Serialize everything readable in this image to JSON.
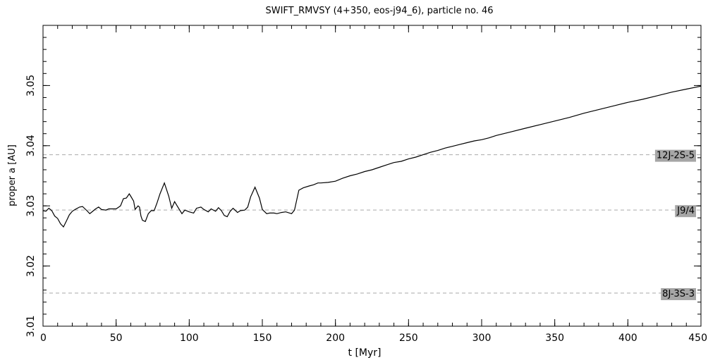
{
  "chart_data": {
    "type": "line",
    "title": "SWIFT_RMVSY (4+350, eos-j94_6), particle no. 46",
    "xlabel": "t [Myr]",
    "ylabel": "proper a [AU]",
    "xlim": [
      0,
      450
    ],
    "ylim": [
      3.01,
      3.06
    ],
    "x_ticks": [
      0,
      50,
      100,
      150,
      200,
      250,
      300,
      350,
      400,
      450
    ],
    "x_tick_labels": [
      "0",
      "50",
      "100",
      "150",
      "200",
      "250",
      "300",
      "350",
      "400",
      "450"
    ],
    "y_ticks": [
      3.01,
      3.02,
      3.03,
      3.04,
      3.05
    ],
    "y_tick_labels": [
      "3.01",
      "3.02",
      "3.03",
      "3.04",
      "3.05"
    ],
    "x_minor_step": 10,
    "y_minor_step": 0.002,
    "grid": false,
    "series": [
      {
        "x": [
          0,
          2,
          4,
          6,
          8,
          10,
          12,
          14,
          16,
          18,
          20,
          22,
          25,
          27,
          30,
          32,
          34,
          36,
          38,
          40,
          43,
          45,
          50,
          53,
          55,
          57,
          59,
          60,
          62,
          63,
          65,
          66,
          67,
          68,
          70,
          72,
          74,
          76,
          78,
          80,
          83,
          86,
          88,
          90,
          92,
          95,
          97,
          100,
          103,
          105,
          108,
          110,
          113,
          115,
          118,
          120,
          122,
          124,
          126,
          128,
          130,
          133,
          135,
          138,
          140,
          142,
          145,
          148,
          150,
          153,
          155,
          158,
          160,
          163,
          166,
          170,
          172,
          175,
          178,
          182,
          185,
          188,
          190,
          195,
          200,
          205,
          210,
          215,
          220,
          225,
          230,
          235,
          240,
          245,
          250,
          255,
          260,
          265,
          270,
          275,
          280,
          285,
          290,
          295,
          300,
          305,
          310,
          320,
          330,
          340,
          350,
          360,
          370,
          380,
          390,
          400,
          410,
          420,
          430,
          440,
          450
        ],
        "values": [
          3.0292,
          3.0291,
          3.0296,
          3.0292,
          3.0283,
          3.0279,
          3.027,
          3.0265,
          3.0275,
          3.0285,
          3.0291,
          3.0294,
          3.0298,
          3.0299,
          3.0292,
          3.0287,
          3.0291,
          3.0295,
          3.0298,
          3.0294,
          3.0293,
          3.0295,
          3.0295,
          3.03,
          3.0312,
          3.0313,
          3.032,
          3.0316,
          3.0308,
          3.0294,
          3.03,
          3.0298,
          3.0283,
          3.0276,
          3.0274,
          3.0287,
          3.0292,
          3.0292,
          3.0305,
          3.032,
          3.0338,
          3.0316,
          3.0296,
          3.0307,
          3.0299,
          3.0287,
          3.0293,
          3.029,
          3.0288,
          3.0296,
          3.0298,
          3.0294,
          3.029,
          3.0295,
          3.0291,
          3.0297,
          3.0292,
          3.0284,
          3.0282,
          3.0291,
          3.0296,
          3.0289,
          3.0292,
          3.0293,
          3.0298,
          3.0315,
          3.0331,
          3.0313,
          3.0294,
          3.0287,
          3.0288,
          3.0288,
          3.0287,
          3.0289,
          3.029,
          3.0287,
          3.0293,
          3.0326,
          3.033,
          3.0333,
          3.0335,
          3.0338,
          3.0338,
          3.0339,
          3.0341,
          3.0346,
          3.035,
          3.0353,
          3.0357,
          3.036,
          3.0364,
          3.0368,
          3.0372,
          3.0374,
          3.0378,
          3.0381,
          3.0385,
          3.0389,
          3.0392,
          3.0396,
          3.0399,
          3.0402,
          3.0405,
          3.0408,
          3.041,
          3.0413,
          3.0417,
          3.0423,
          3.0429,
          3.0435,
          3.0441,
          3.0447,
          3.0454,
          3.046,
          3.0466,
          3.0472,
          3.0477,
          3.0483,
          3.0489,
          3.0494,
          3.0499
        ]
      }
    ],
    "reference_lines": [
      {
        "y": 3.0385,
        "label": "12J-2S-5"
      },
      {
        "y": 3.0293,
        "label": "J9/4"
      },
      {
        "y": 3.0155,
        "label": "8J-3S-3"
      }
    ],
    "colors": {
      "line": "#000000",
      "reference_line": "#aaaaaa",
      "label_box": "#a6a6a6",
      "background": "#ffffff"
    }
  }
}
